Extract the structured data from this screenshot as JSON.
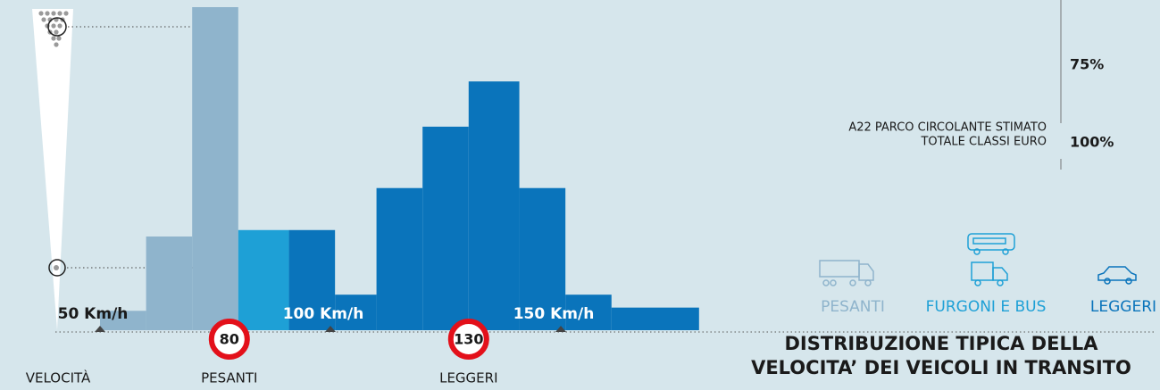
{
  "chart_data": {
    "type": "histogram",
    "title_lines": [
      "DISTRIBUZIONE TIPICA DELLA",
      "VELOCITA’ DEI VEICOLI IN TRANSITO"
    ],
    "bins": [
      50,
      60,
      70,
      80,
      91,
      101,
      110,
      120,
      130,
      141,
      151,
      161,
      180
    ],
    "values": [
      6,
      29,
      100,
      31,
      31,
      11,
      44,
      63,
      77,
      44,
      11,
      7
    ],
    "colors": [
      "#8fb4cc",
      "#8fb4cc",
      "#8fb4cc",
      "#1ea0d6",
      "#0a74bb",
      "#0a74bb",
      "#0a74bb",
      "#0a74bb",
      "#0a74bb",
      "#0a74bb",
      "#0a74bb",
      "#0a74bb"
    ],
    "xlim": [
      50,
      180
    ],
    "ylim": [
      0,
      100
    ],
    "xticks": [
      {
        "value": 50,
        "label": "50 Km/h"
      },
      {
        "value": 100,
        "label": "100  Km/h"
      },
      {
        "value": 150,
        "label": "150  Km/h"
      }
    ],
    "x_label": "VELOCITÀ",
    "limits": [
      {
        "value": 80,
        "label": "PESANTI"
      },
      {
        "value": 130,
        "label": "LEGGERI"
      }
    ],
    "legend": [
      {
        "name": "PESANTI",
        "color": "#8fb4cc"
      },
      {
        "name": "FURGONI E BUS",
        "color": "#1ea0d6"
      },
      {
        "name": "LEGGERI",
        "color": "#0a74bb"
      }
    ],
    "side_note": [
      "A22 PARCO CIRCOLANTE STIMATO",
      "TOTALE CLASSI EURO"
    ],
    "side_ticks": [
      {
        "value": 75,
        "label": "75%"
      },
      {
        "value": 100,
        "label": "100%"
      }
    ]
  }
}
